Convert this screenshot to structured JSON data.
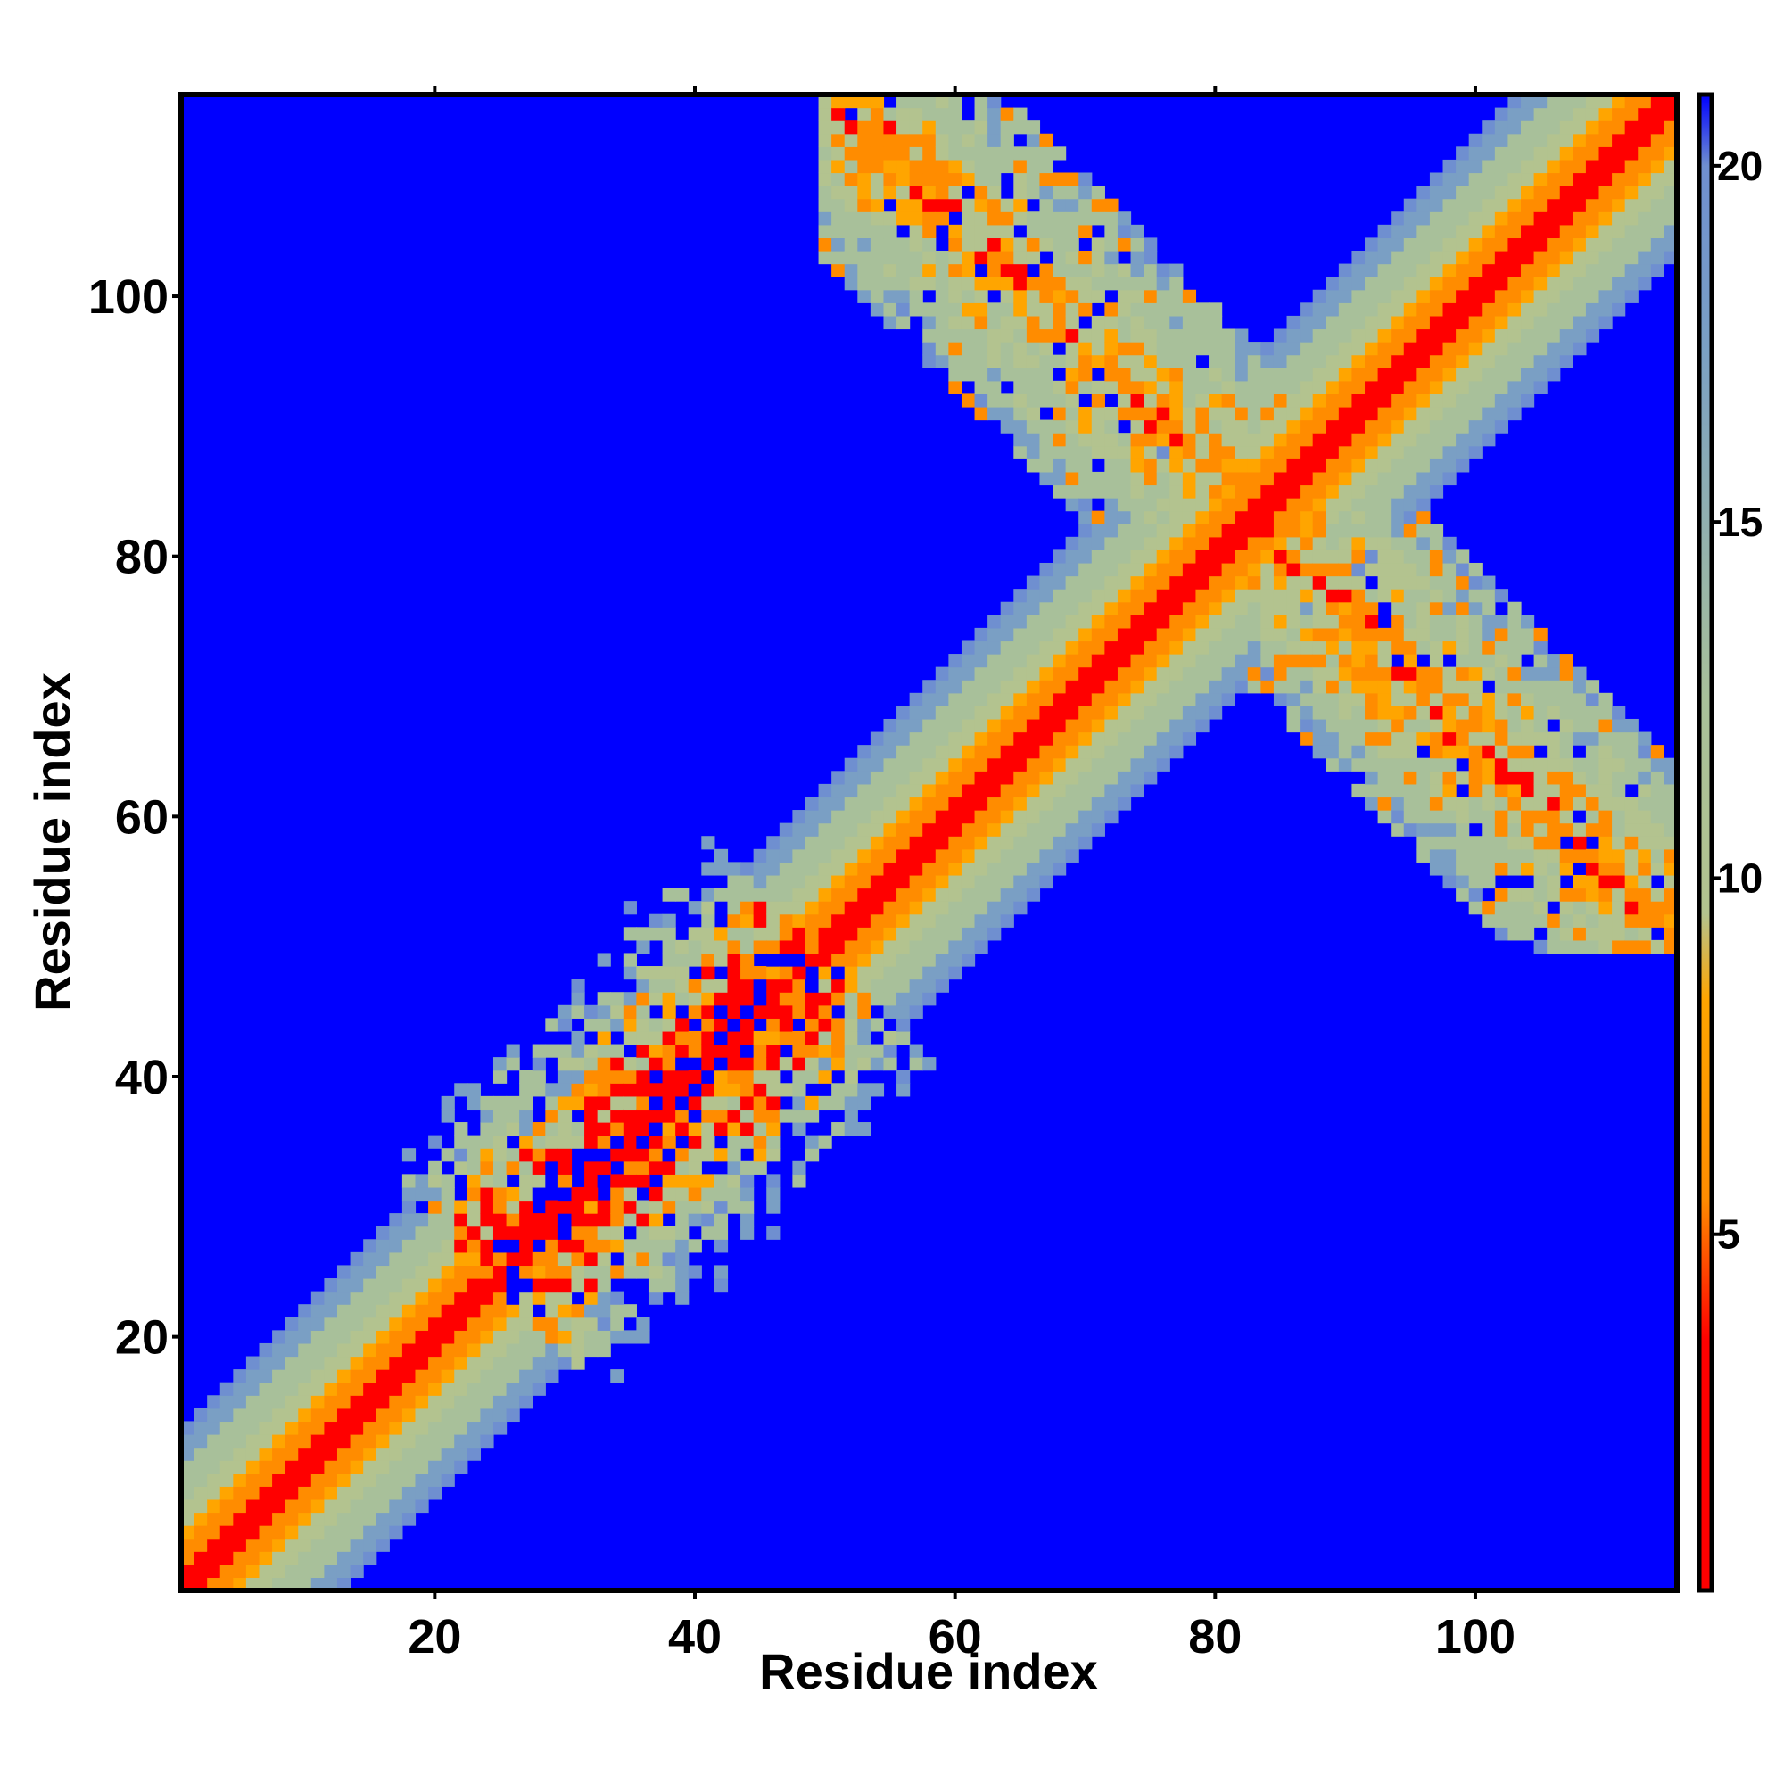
{
  "chart_data": {
    "type": "heatmap",
    "title": "",
    "xlabel": "Residue index",
    "ylabel": "Residue index",
    "n_residues": 115,
    "xlim": [
      1,
      115
    ],
    "ylim": [
      1,
      115
    ],
    "x_ticks": [
      20,
      40,
      60,
      80,
      100
    ],
    "y_ticks": [
      20,
      40,
      60,
      80,
      100
    ],
    "colorbar": {
      "ticks": [
        5,
        10,
        15,
        20
      ],
      "range": [
        0,
        21
      ],
      "stops": [
        {
          "value": 0,
          "color": "#ff0000"
        },
        {
          "value": 3.5,
          "color": "#ff0000"
        },
        {
          "value": 5.5,
          "color": "#ff8c00"
        },
        {
          "value": 8.3,
          "color": "#ffa500"
        },
        {
          "value": 9.5,
          "color": "#b3c38f"
        },
        {
          "value": 12.5,
          "color": "#a8c09a"
        },
        {
          "value": 17.5,
          "color": "#7a9fc4"
        },
        {
          "value": 20.0,
          "color": "#6f8fd0"
        },
        {
          "value": 21,
          "color": "#0000ff"
        }
      ]
    },
    "background_color": "#0000ff",
    "description_values": {
      "diagonal_value": 3.8,
      "max_distance": 21
    },
    "contact_regions": [
      {
        "name": "main-diagonal",
        "from": [
          1,
          1
        ],
        "to": [
          115,
          115
        ],
        "halfwidth_residues": 12
      },
      {
        "name": "antiparallel-contact",
        "from": [
          50,
          115
        ],
        "to": [
          115,
          50
        ],
        "center": [
          83,
          83
        ]
      },
      {
        "name": "local-cluster",
        "from": [
          25,
          25
        ],
        "to": [
          50,
          50
        ]
      }
    ]
  }
}
